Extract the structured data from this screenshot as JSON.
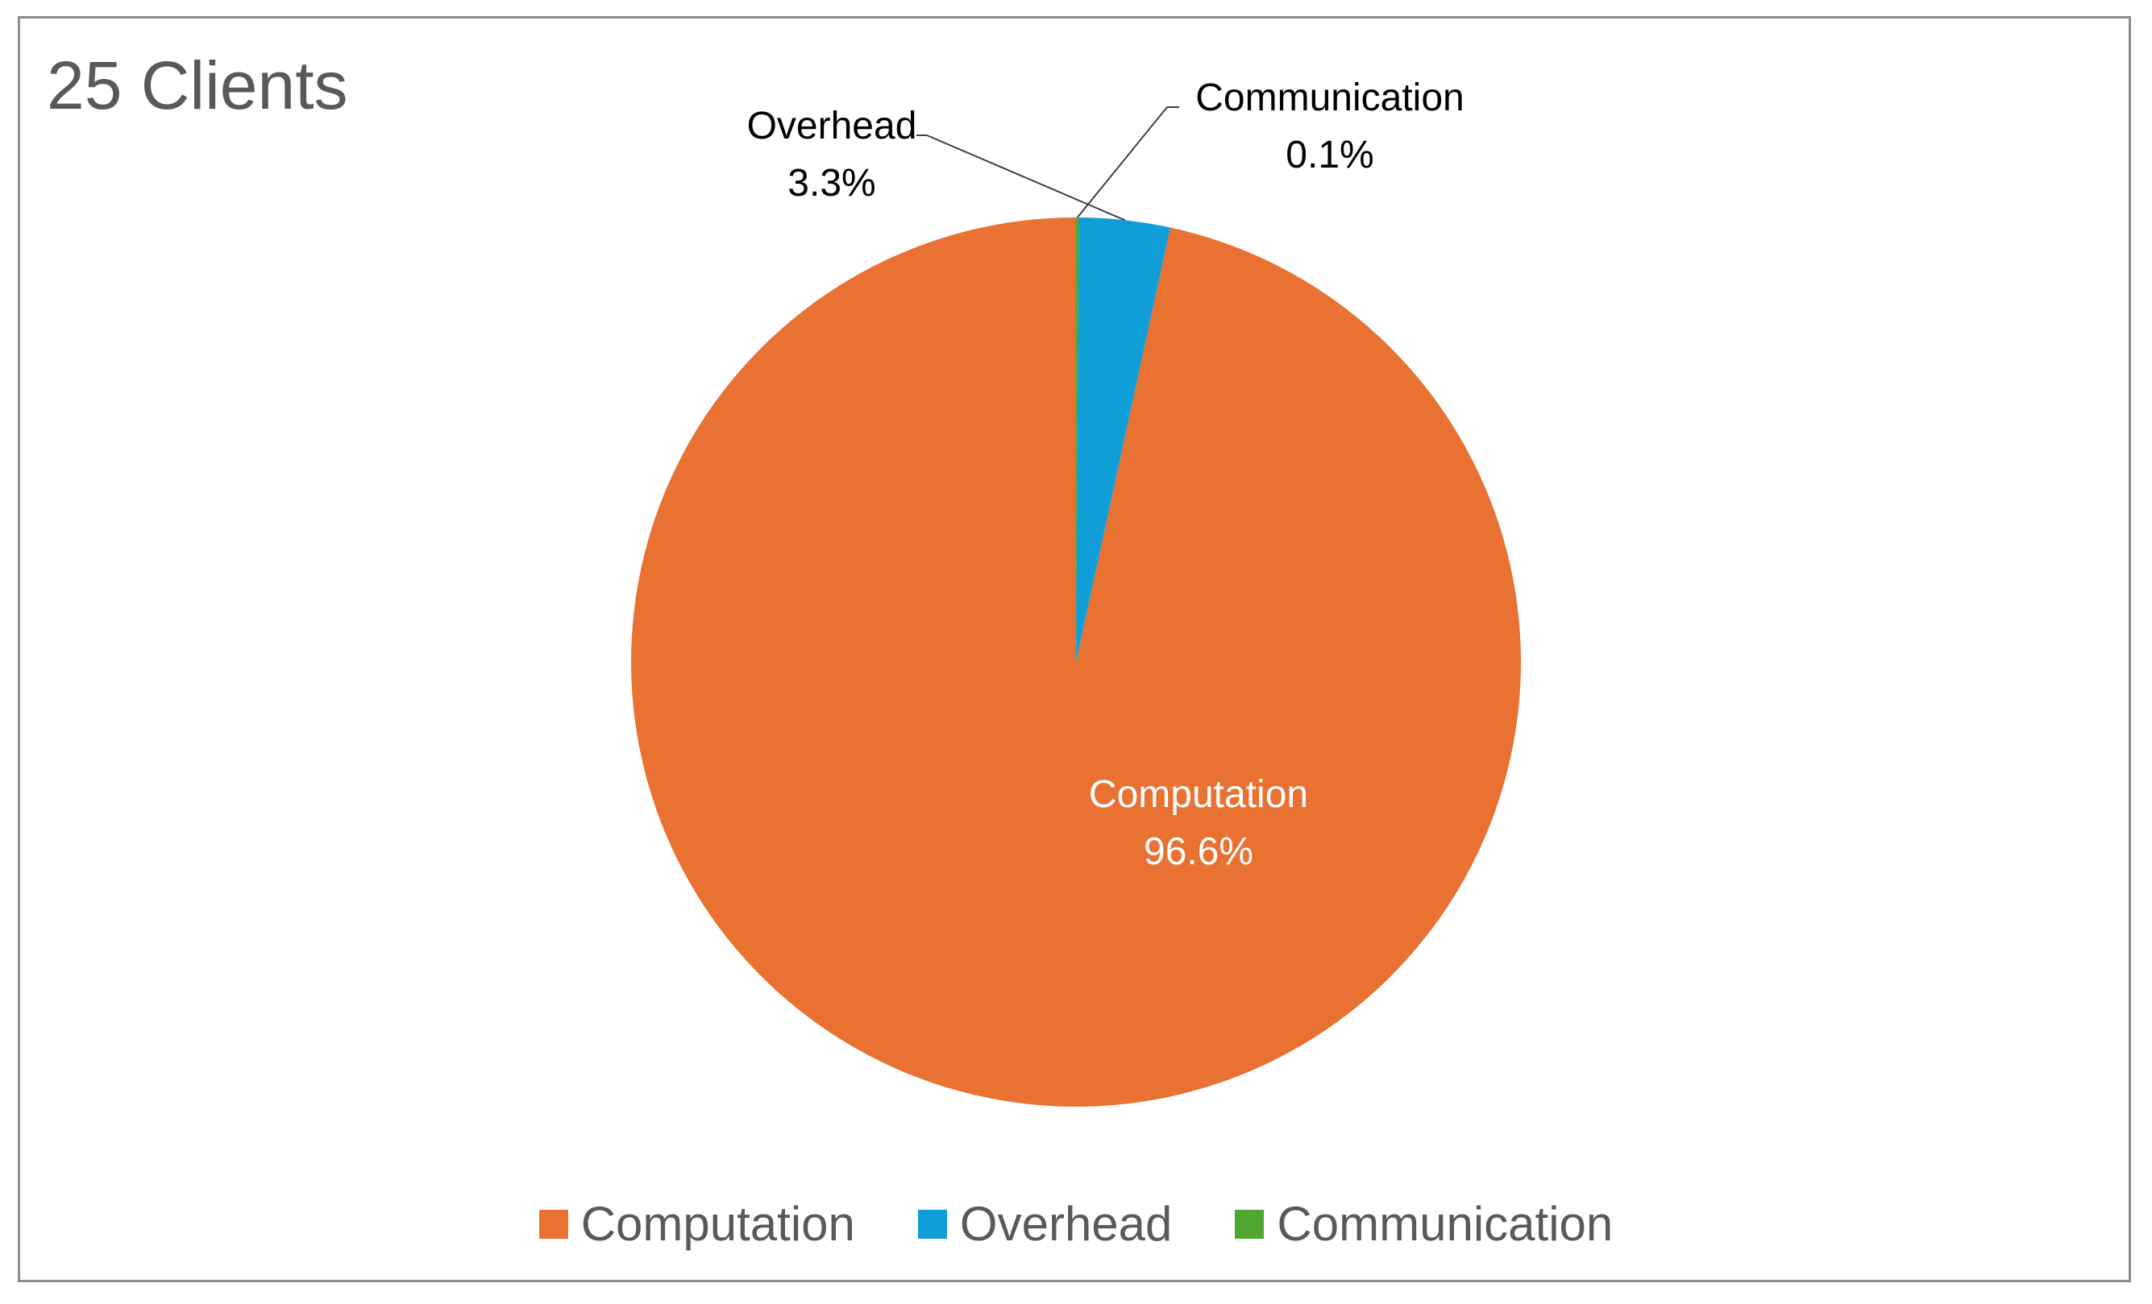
{
  "chart_data": {
    "type": "pie",
    "title": "25 Clients",
    "slices": [
      {
        "label": "Computation",
        "value": 96.6,
        "value_label": "96.6%",
        "color": "#E97132"
      },
      {
        "label": "Overhead",
        "value": 3.3,
        "value_label": "3.3%",
        "color": "#109ED8"
      },
      {
        "label": "Communication",
        "value": 0.1,
        "value_label": "0.1%",
        "color": "#4EA72E"
      }
    ],
    "legend": {
      "position": "bottom"
    },
    "start_angle": "12 o'clock",
    "direction": "counter-clockwise"
  }
}
